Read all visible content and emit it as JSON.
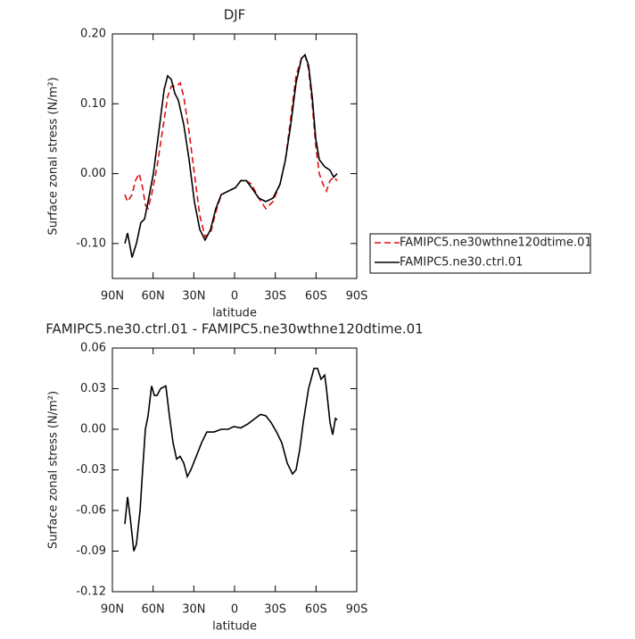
{
  "chart_data": [
    {
      "type": "line",
      "title": "DJF",
      "x_label": "latitude",
      "y_label": "Surface zonal stress (N/m²)",
      "xlim": [
        90,
        -90
      ],
      "xticks": [
        {
          "value": 90,
          "label": "90N"
        },
        {
          "value": 60,
          "label": "60N"
        },
        {
          "value": 30,
          "label": "30N"
        },
        0,
        {
          "value": -30,
          "label": "30S"
        },
        {
          "value": -60,
          "label": "60S"
        },
        {
          "value": -90,
          "label": "90S"
        }
      ],
      "ylim": [
        -0.15,
        0.2
      ],
      "yticks": [
        {
          "value": -0.1,
          "label": "-0.10"
        },
        {
          "value": 0,
          "label": "0.00"
        },
        {
          "value": 0.1,
          "label": "0.10"
        },
        {
          "value": 0.2,
          "label": "0.20"
        }
      ],
      "legend": "right",
      "series": [
        {
          "name": "FAMIPC5.ne30wthne120dtime.01",
          "color": "#e01010",
          "line_style": "dashed",
          "x": [
            80.8,
            78.8,
            75.5,
            73.0,
            70.3,
            67.7,
            65.7,
            63.7,
            61.1,
            57.1,
            53.2,
            49.3,
            46.6,
            42.7,
            40.1,
            37.4,
            33.5,
            29.6,
            25.6,
            21.7,
            17.7,
            13.8,
            9.8,
            4.6,
            -0.7,
            -4.6,
            -8.6,
            -12.5,
            -17.8,
            -23.0,
            -28.3,
            -33.5,
            -37.5,
            -41.4,
            -45.3,
            -49.3,
            -51.9,
            -54.5,
            -57.2,
            -59.8,
            -62.4,
            -65.1,
            -67.7,
            -70.3,
            -73.0,
            -75.6
          ],
          "values": [
            -0.03,
            -0.04,
            -0.03,
            -0.01,
            0.0,
            -0.02,
            -0.045,
            -0.05,
            -0.03,
            0.01,
            0.06,
            0.11,
            0.125,
            0.125,
            0.13,
            0.11,
            0.06,
            0.0,
            -0.06,
            -0.09,
            -0.085,
            -0.055,
            -0.03,
            -0.025,
            -0.02,
            -0.01,
            -0.01,
            -0.015,
            -0.035,
            -0.05,
            -0.04,
            -0.015,
            0.02,
            0.08,
            0.14,
            0.165,
            0.17,
            0.15,
            0.1,
            0.04,
            0.0,
            -0.015,
            -0.025,
            -0.01,
            -0.005,
            -0.01
          ]
        },
        {
          "name": "FAMIPC5.ne30.ctrl.01",
          "color": "#000000",
          "line_style": "solid",
          "x": [
            80.8,
            78.8,
            75.5,
            72.3,
            69.0,
            66.3,
            63.7,
            59.8,
            55.8,
            51.9,
            49.3,
            46.6,
            44.0,
            41.4,
            37.4,
            33.5,
            29.6,
            25.6,
            21.7,
            17.7,
            13.8,
            9.8,
            4.6,
            -0.7,
            -4.6,
            -8.6,
            -12.5,
            -17.8,
            -23.0,
            -28.3,
            -33.5,
            -37.5,
            -41.4,
            -45.3,
            -49.3,
            -51.9,
            -54.5,
            -57.2,
            -59.8,
            -62.4,
            -66.4,
            -70.3,
            -73.0,
            -75.6
          ],
          "values": [
            -0.1,
            -0.085,
            -0.12,
            -0.1,
            -0.07,
            -0.065,
            -0.04,
            0.0,
            0.06,
            0.12,
            0.14,
            0.135,
            0.115,
            0.105,
            0.07,
            0.02,
            -0.04,
            -0.08,
            -0.095,
            -0.08,
            -0.05,
            -0.03,
            -0.025,
            -0.02,
            -0.01,
            -0.01,
            -0.02,
            -0.035,
            -0.04,
            -0.035,
            -0.015,
            0.02,
            0.07,
            0.13,
            0.165,
            0.17,
            0.155,
            0.11,
            0.05,
            0.02,
            0.01,
            0.005,
            -0.005,
            0.0
          ]
        }
      ]
    },
    {
      "type": "line",
      "title": "FAMIPC5.ne30.ctrl.01 - FAMIPC5.ne30wthne120dtime.01",
      "x_label": "latitude",
      "y_label": "Surface zonal stress (N/m²)",
      "xlim": [
        90,
        -90
      ],
      "xticks": [
        {
          "value": 90,
          "label": "90N"
        },
        {
          "value": 60,
          "label": "60N"
        },
        {
          "value": 30,
          "label": "30N"
        },
        0,
        {
          "value": -30,
          "label": "30S"
        },
        {
          "value": -60,
          "label": "60S"
        },
        {
          "value": -90,
          "label": "90S"
        }
      ],
      "ylim": [
        -0.12,
        0.06
      ],
      "yticks": [
        -0.12,
        -0.09,
        -0.06,
        -0.03,
        {
          "value": 0,
          "label": "0.00"
        },
        0.03,
        0.06
      ],
      "series": [
        {
          "color": "#000000",
          "line_style": "solid",
          "x": [
            80.8,
            78.8,
            76.9,
            74.2,
            72.3,
            69.6,
            67.7,
            65.7,
            63.7,
            61.1,
            59.1,
            57.1,
            54.5,
            50.6,
            48.0,
            45.3,
            42.7,
            40.1,
            37.4,
            34.8,
            32.2,
            28.2,
            24.3,
            20.4,
            15.1,
            9.8,
            4.6,
            0.6,
            -4.6,
            -9.9,
            -15.1,
            -19.1,
            -23.0,
            -26.9,
            -30.9,
            -34.8,
            -38.8,
            -42.7,
            -45.3,
            -48.0,
            -50.6,
            -54.5,
            -58.5,
            -61.1,
            -63.7,
            -66.4,
            -67.7,
            -70.3,
            -72.3,
            -74.3,
            -75.6
          ],
          "values": [
            -0.07,
            -0.05,
            -0.065,
            -0.09,
            -0.085,
            -0.06,
            -0.03,
            0.0,
            0.01,
            0.032,
            0.025,
            0.025,
            0.03,
            0.032,
            0.01,
            -0.01,
            -0.022,
            -0.02,
            -0.025,
            -0.035,
            -0.03,
            -0.02,
            -0.01,
            -0.002,
            -0.002,
            0.0,
            0.0,
            0.002,
            0.001,
            0.004,
            0.008,
            0.011,
            0.01,
            0.005,
            -0.002,
            -0.01,
            -0.025,
            -0.033,
            -0.03,
            -0.015,
            0.005,
            0.03,
            0.045,
            0.045,
            0.037,
            0.04,
            0.03,
            0.005,
            -0.004,
            0.008,
            0.007
          ]
        }
      ]
    }
  ]
}
